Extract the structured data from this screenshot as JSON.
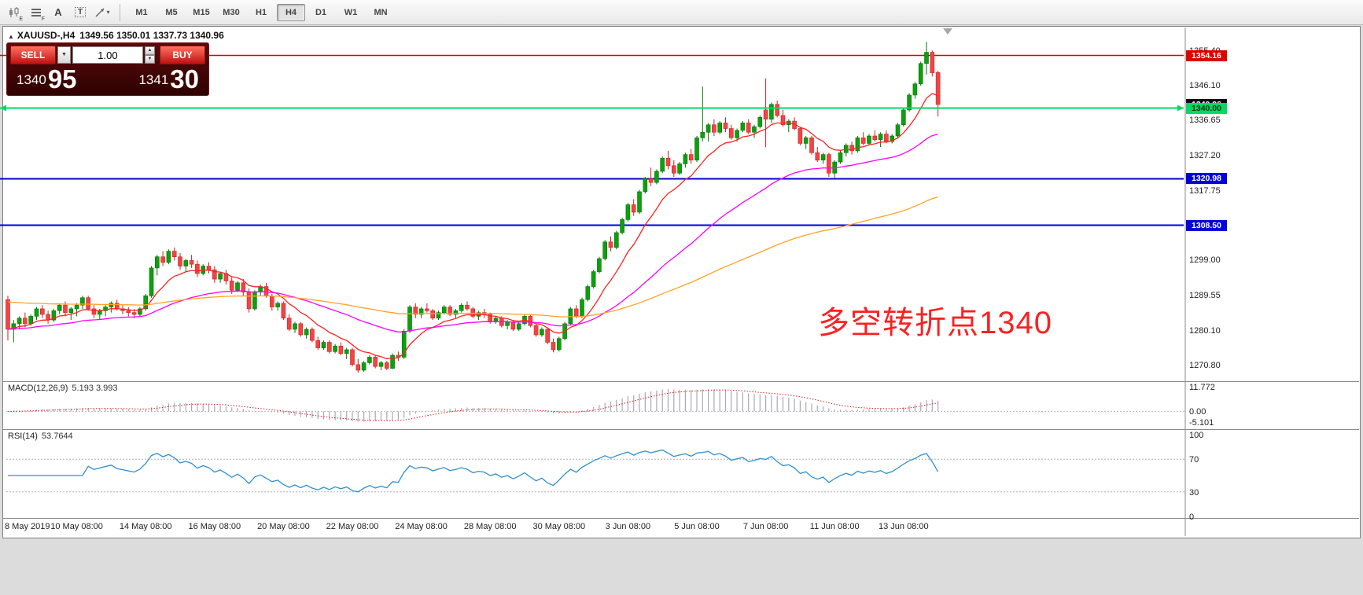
{
  "toolbar": {
    "tool_labels": {
      "e": "E",
      "f": "F",
      "a": "A",
      "t": "T"
    },
    "timeframes": [
      "M1",
      "M5",
      "M15",
      "M30",
      "H1",
      "H4",
      "D1",
      "W1",
      "MN"
    ],
    "active_timeframe": "H4"
  },
  "chart": {
    "symbol_period": "XAUUSD-,H4",
    "ohlc_text": "1349.56 1350.01 1337.73 1340.96",
    "annotation": "多空转折点1340"
  },
  "trade_panel": {
    "sell_label": "SELL",
    "buy_label": "BUY",
    "volume": "1.00",
    "sell_price_main": "1340",
    "sell_price_big": "95",
    "buy_price_main": "1341",
    "buy_price_big": "30"
  },
  "price_axis": {
    "labels": [
      {
        "text": "1355.40",
        "price": 1355.4
      },
      {
        "text": "1346.10",
        "price": 1346.1
      },
      {
        "text": "1336.65",
        "price": 1336.65
      },
      {
        "text": "1327.20",
        "price": 1327.2
      },
      {
        "text": "1317.75",
        "price": 1317.75
      },
      {
        "text": "1299.00",
        "price": 1299.0
      },
      {
        "text": "1289.55",
        "price": 1289.55
      },
      {
        "text": "1280.10",
        "price": 1280.1
      },
      {
        "text": "1270.80",
        "price": 1270.8
      }
    ],
    "tags": [
      {
        "text": "1354.16",
        "price": 1354.16,
        "bg": "#dd0000",
        "fg": "#ffffff"
      },
      {
        "text": "1340.96",
        "price": 1340.96,
        "bg": "#0b0b18",
        "fg": "#ffffff"
      },
      {
        "text": "1340.00",
        "price": 1340.0,
        "bg": "#00d964",
        "fg": "#00320a"
      },
      {
        "text": "1320.98",
        "price": 1320.98,
        "bg": "#0000d9",
        "fg": "#ffffff"
      },
      {
        "text": "1308.50",
        "price": 1308.5,
        "bg": "#0000d9",
        "fg": "#ffffff"
      }
    ]
  },
  "hlines": [
    {
      "price": 1354.16,
      "color": "#dd0000",
      "width": 1.5,
      "arrows": false
    },
    {
      "price": 1340.0,
      "color": "#00d964",
      "width": 2,
      "arrows": true
    },
    {
      "price": 1320.98,
      "color": "#0000d9",
      "width": 2,
      "arrows": false
    },
    {
      "price": 1308.5,
      "color": "#0000d9",
      "width": 2,
      "arrows": false
    }
  ],
  "macd_panel": {
    "label": "MACD(12,26,9)",
    "values": "5.193 3.993",
    "axis": [
      {
        "text": "11.772",
        "v": 11.772
      },
      {
        "text": "0.00",
        "v": 0
      },
      {
        "text": "-5.101",
        "v": -5.101
      }
    ]
  },
  "rsi_panel": {
    "label": "RSI(14)",
    "value": "53.7644",
    "axis": [
      {
        "text": "100",
        "v": 100
      },
      {
        "text": "70",
        "v": 70
      },
      {
        "text": "30",
        "v": 30
      },
      {
        "text": "0",
        "v": 0
      }
    ],
    "levels": [
      70,
      30
    ]
  },
  "time_axis": [
    {
      "label": "8 May 2019",
      "index": 0
    },
    {
      "label": "10 May 08:00",
      "index": 12
    },
    {
      "label": "14 May 08:00",
      "index": 24
    },
    {
      "label": "16 May 08:00",
      "index": 36
    },
    {
      "label": "20 May 08:00",
      "index": 48
    },
    {
      "label": "22 May 08:00",
      "index": 60
    },
    {
      "label": "24 May 08:00",
      "index": 72
    },
    {
      "label": "28 May 08:00",
      "index": 84
    },
    {
      "label": "30 May 08:00",
      "index": 96
    },
    {
      "label": "3 Jun 08:00",
      "index": 108
    },
    {
      "label": "5 Jun 08:00",
      "index": 120
    },
    {
      "label": "7 Jun 08:00",
      "index": 132
    },
    {
      "label": "11 Jun 08:00",
      "index": 144
    },
    {
      "label": "13 Jun 08:00",
      "index": 156
    }
  ],
  "chart_data": {
    "type": "candlestick",
    "symbol": "XAUUSD",
    "period": "H4",
    "ylim": [
      1264,
      1362
    ],
    "overlays": [
      {
        "name": "ma-fast",
        "color": "#ff2222",
        "period": 10
      },
      {
        "name": "ma-mid",
        "color": "#ff00ff",
        "period": 40
      },
      {
        "name": "ma-slow",
        "color": "#ffa224",
        "period": 110,
        "seed": 1288
      }
    ],
    "indicators": {
      "macd": {
        "fast": 12,
        "slow": 26,
        "signal": 9
      },
      "rsi": {
        "period": 14
      }
    },
    "candles": [
      [
        1288.5,
        1289.5,
        1277.5,
        1280.5
      ],
      [
        1280.5,
        1283.0,
        1277.0,
        1282.0
      ],
      [
        1282.0,
        1284.0,
        1280.5,
        1283.5
      ],
      [
        1283.5,
        1285.0,
        1281.0,
        1282.0
      ],
      [
        1282.0,
        1284.5,
        1281.5,
        1284.0
      ],
      [
        1284.0,
        1286.5,
        1283.0,
        1286.0
      ],
      [
        1286.0,
        1287.0,
        1283.5,
        1284.5
      ],
      [
        1284.5,
        1285.5,
        1282.0,
        1283.0
      ],
      [
        1283.0,
        1286.0,
        1282.5,
        1285.5
      ],
      [
        1285.5,
        1287.5,
        1284.5,
        1287.0
      ],
      [
        1287.0,
        1288.0,
        1284.0,
        1285.0
      ],
      [
        1285.0,
        1286.5,
        1283.0,
        1286.0
      ],
      [
        1286.0,
        1287.5,
        1284.0,
        1287.0
      ],
      [
        1287.0,
        1289.5,
        1286.0,
        1289.0
      ],
      [
        1289.0,
        1289.5,
        1285.5,
        1286.0
      ],
      [
        1286.0,
        1287.0,
        1283.5,
        1284.5
      ],
      [
        1284.5,
        1286.0,
        1283.0,
        1285.5
      ],
      [
        1285.5,
        1287.0,
        1284.0,
        1286.5
      ],
      [
        1286.5,
        1288.0,
        1285.0,
        1287.5
      ],
      [
        1287.5,
        1288.5,
        1285.5,
        1286.0
      ],
      [
        1286.0,
        1287.0,
        1284.5,
        1285.5
      ],
      [
        1285.5,
        1286.5,
        1284.0,
        1285.0
      ],
      [
        1285.0,
        1286.0,
        1283.5,
        1284.5
      ],
      [
        1284.5,
        1286.5,
        1284.0,
        1286.0
      ],
      [
        1286.0,
        1290.0,
        1285.5,
        1289.5
      ],
      [
        1289.5,
        1297.5,
        1289.0,
        1297.0
      ],
      [
        1297.0,
        1300.5,
        1295.0,
        1300.0
      ],
      [
        1300.0,
        1301.5,
        1297.5,
        1298.5
      ],
      [
        1298.5,
        1302.0,
        1298.0,
        1301.5
      ],
      [
        1301.5,
        1302.5,
        1299.0,
        1300.0
      ],
      [
        1300.0,
        1301.0,
        1296.5,
        1297.5
      ],
      [
        1297.5,
        1299.5,
        1296.0,
        1299.0
      ],
      [
        1299.0,
        1300.5,
        1297.0,
        1298.0
      ],
      [
        1298.0,
        1299.0,
        1294.5,
        1295.5
      ],
      [
        1295.5,
        1298.0,
        1295.0,
        1297.5
      ],
      [
        1297.5,
        1298.5,
        1295.5,
        1296.5
      ],
      [
        1296.5,
        1297.5,
        1293.0,
        1294.0
      ],
      [
        1294.0,
        1296.0,
        1293.0,
        1295.5
      ],
      [
        1295.5,
        1296.5,
        1292.5,
        1293.5
      ],
      [
        1293.5,
        1294.5,
        1290.0,
        1291.0
      ],
      [
        1291.0,
        1293.5,
        1290.5,
        1293.0
      ],
      [
        1293.0,
        1294.0,
        1289.5,
        1290.5
      ],
      [
        1290.5,
        1291.5,
        1285.0,
        1286.0
      ],
      [
        1286.0,
        1291.0,
        1285.5,
        1290.5
      ],
      [
        1290.5,
        1292.5,
        1289.5,
        1292.0
      ],
      [
        1292.0,
        1293.0,
        1289.0,
        1289.5
      ],
      [
        1289.5,
        1290.0,
        1285.5,
        1286.5
      ],
      [
        1286.5,
        1288.0,
        1285.5,
        1287.5
      ],
      [
        1287.5,
        1288.0,
        1283.0,
        1283.5
      ],
      [
        1283.5,
        1284.5,
        1280.0,
        1280.5
      ],
      [
        1280.5,
        1282.5,
        1279.5,
        1282.0
      ],
      [
        1282.0,
        1282.5,
        1278.5,
        1279.0
      ],
      [
        1279.0,
        1281.0,
        1278.0,
        1280.5
      ],
      [
        1280.5,
        1281.0,
        1277.0,
        1277.5
      ],
      [
        1277.5,
        1278.5,
        1275.0,
        1275.5
      ],
      [
        1275.5,
        1277.5,
        1275.0,
        1277.0
      ],
      [
        1277.0,
        1277.5,
        1274.0,
        1274.5
      ],
      [
        1274.5,
        1276.5,
        1274.0,
        1276.0
      ],
      [
        1276.0,
        1277.0,
        1273.5,
        1274.0
      ],
      [
        1274.0,
        1275.5,
        1272.5,
        1275.0
      ],
      [
        1275.0,
        1275.5,
        1270.5,
        1271.0
      ],
      [
        1271.0,
        1272.5,
        1268.8,
        1269.5
      ],
      [
        1269.5,
        1272.0,
        1269.0,
        1271.5
      ],
      [
        1271.5,
        1273.5,
        1271.0,
        1273.0
      ],
      [
        1273.0,
        1273.5,
        1270.0,
        1270.5
      ],
      [
        1270.5,
        1272.0,
        1269.5,
        1271.5
      ],
      [
        1271.5,
        1272.0,
        1269.5,
        1270.0
      ],
      [
        1270.0,
        1274.0,
        1269.8,
        1273.5
      ],
      [
        1273.5,
        1274.5,
        1272.0,
        1273.0
      ],
      [
        1273.0,
        1280.5,
        1272.5,
        1280.0
      ],
      [
        1280.0,
        1287.0,
        1279.5,
        1286.5
      ],
      [
        1286.5,
        1287.5,
        1283.5,
        1284.5
      ],
      [
        1284.5,
        1286.5,
        1283.5,
        1286.0
      ],
      [
        1286.0,
        1287.5,
        1285.0,
        1285.5
      ],
      [
        1285.5,
        1286.0,
        1283.0,
        1283.5
      ],
      [
        1283.5,
        1285.5,
        1283.0,
        1285.0
      ],
      [
        1285.0,
        1287.0,
        1284.5,
        1286.5
      ],
      [
        1286.5,
        1287.0,
        1284.0,
        1284.5
      ],
      [
        1284.5,
        1286.0,
        1283.5,
        1285.5
      ],
      [
        1285.5,
        1287.5,
        1285.0,
        1287.0
      ],
      [
        1287.0,
        1288.0,
        1285.5,
        1286.0
      ],
      [
        1286.0,
        1286.5,
        1283.5,
        1284.0
      ],
      [
        1284.0,
        1285.5,
        1283.0,
        1285.0
      ],
      [
        1285.0,
        1286.0,
        1283.5,
        1284.5
      ],
      [
        1284.5,
        1285.0,
        1282.0,
        1282.5
      ],
      [
        1282.5,
        1284.0,
        1282.0,
        1283.5
      ],
      [
        1283.5,
        1284.0,
        1281.0,
        1281.5
      ],
      [
        1281.5,
        1283.0,
        1280.5,
        1282.5
      ],
      [
        1282.5,
        1283.0,
        1280.0,
        1280.5
      ],
      [
        1280.5,
        1282.5,
        1280.0,
        1282.0
      ],
      [
        1282.0,
        1284.5,
        1281.5,
        1284.0
      ],
      [
        1284.0,
        1284.5,
        1281.0,
        1281.5
      ],
      [
        1281.5,
        1282.0,
        1278.5,
        1279.0
      ],
      [
        1279.0,
        1281.0,
        1278.5,
        1280.5
      ],
      [
        1280.5,
        1281.0,
        1276.5,
        1277.0
      ],
      [
        1277.0,
        1278.0,
        1274.3,
        1275.0
      ],
      [
        1275.0,
        1278.5,
        1274.5,
        1278.0
      ],
      [
        1278.0,
        1282.5,
        1277.5,
        1282.0
      ],
      [
        1282.0,
        1286.5,
        1281.5,
        1286.0
      ],
      [
        1286.0,
        1287.0,
        1283.5,
        1284.0
      ],
      [
        1284.0,
        1289.0,
        1283.5,
        1288.5
      ],
      [
        1288.5,
        1292.5,
        1288.0,
        1292.0
      ],
      [
        1292.0,
        1296.5,
        1291.5,
        1296.0
      ],
      [
        1296.0,
        1300.0,
        1295.5,
        1299.5
      ],
      [
        1299.5,
        1304.5,
        1299.0,
        1304.0
      ],
      [
        1304.0,
        1305.5,
        1301.5,
        1302.5
      ],
      [
        1302.5,
        1307.0,
        1302.0,
        1306.5
      ],
      [
        1306.5,
        1310.5,
        1306.0,
        1310.0
      ],
      [
        1310.0,
        1314.5,
        1309.5,
        1314.0
      ],
      [
        1314.0,
        1315.5,
        1311.0,
        1312.0
      ],
      [
        1312.0,
        1318.0,
        1311.5,
        1317.5
      ],
      [
        1317.5,
        1321.5,
        1317.0,
        1321.0
      ],
      [
        1321.0,
        1324.0,
        1319.0,
        1320.0
      ],
      [
        1320.0,
        1323.5,
        1319.5,
        1323.0
      ],
      [
        1323.0,
        1327.0,
        1322.5,
        1326.5
      ],
      [
        1326.5,
        1328.5,
        1323.5,
        1324.5
      ],
      [
        1324.5,
        1326.0,
        1321.5,
        1322.5
      ],
      [
        1322.5,
        1325.5,
        1322.0,
        1325.0
      ],
      [
        1325.0,
        1328.0,
        1324.0,
        1327.5
      ],
      [
        1327.5,
        1329.0,
        1325.0,
        1326.0
      ],
      [
        1326.0,
        1332.5,
        1325.5,
        1332.0
      ],
      [
        1332.0,
        1345.8,
        1331.0,
        1333.5
      ],
      [
        1333.5,
        1336.0,
        1331.0,
        1335.5
      ],
      [
        1335.5,
        1337.0,
        1332.5,
        1333.5
      ],
      [
        1333.5,
        1336.5,
        1333.0,
        1336.0
      ],
      [
        1336.0,
        1337.5,
        1333.5,
        1334.5
      ],
      [
        1334.5,
        1335.5,
        1331.5,
        1332.0
      ],
      [
        1332.0,
        1334.5,
        1331.0,
        1334.0
      ],
      [
        1334.0,
        1336.5,
        1333.5,
        1336.0
      ],
      [
        1336.0,
        1337.0,
        1333.0,
        1333.5
      ],
      [
        1333.5,
        1335.5,
        1332.0,
        1335.0
      ],
      [
        1335.0,
        1338.0,
        1334.5,
        1337.5
      ],
      [
        1339.5,
        1348.0,
        1329.5,
        1337.0
      ],
      [
        1337.0,
        1341.5,
        1336.0,
        1341.0
      ],
      [
        1341.0,
        1342.0,
        1337.5,
        1338.0
      ],
      [
        1338.0,
        1339.5,
        1335.0,
        1335.5
      ],
      [
        1335.5,
        1337.0,
        1333.5,
        1336.5
      ],
      [
        1336.5,
        1337.5,
        1334.0,
        1334.5
      ],
      [
        1334.5,
        1335.0,
        1330.0,
        1330.5
      ],
      [
        1330.5,
        1332.5,
        1329.0,
        1332.0
      ],
      [
        1332.0,
        1332.5,
        1327.5,
        1328.0
      ],
      [
        1328.0,
        1329.5,
        1325.5,
        1326.0
      ],
      [
        1326.0,
        1328.0,
        1325.0,
        1327.5
      ],
      [
        1327.5,
        1328.0,
        1321.5,
        1322.5
      ],
      [
        1322.5,
        1326.0,
        1321.0,
        1325.5
      ],
      [
        1325.5,
        1328.5,
        1325.0,
        1328.0
      ],
      [
        1328.0,
        1330.5,
        1327.0,
        1330.0
      ],
      [
        1330.0,
        1331.0,
        1327.5,
        1328.5
      ],
      [
        1328.5,
        1332.5,
        1328.0,
        1332.0
      ],
      [
        1332.0,
        1333.5,
        1330.0,
        1330.5
      ],
      [
        1330.5,
        1333.0,
        1330.0,
        1332.5
      ],
      [
        1332.5,
        1334.0,
        1331.0,
        1331.5
      ],
      [
        1331.5,
        1333.5,
        1329.5,
        1333.0
      ],
      [
        1333.0,
        1334.0,
        1330.5,
        1331.0
      ],
      [
        1331.0,
        1333.0,
        1330.5,
        1332.5
      ],
      [
        1332.5,
        1336.0,
        1332.0,
        1335.5
      ],
      [
        1335.5,
        1340.0,
        1335.0,
        1339.5
      ],
      [
        1339.5,
        1344.0,
        1339.0,
        1343.5
      ],
      [
        1343.5,
        1347.0,
        1342.5,
        1346.5
      ],
      [
        1346.5,
        1352.5,
        1346.0,
        1352.0
      ],
      [
        1352.0,
        1357.8,
        1349.0,
        1355.0
      ],
      [
        1355.0,
        1355.5,
        1348.5,
        1349.5
      ],
      [
        1349.56,
        1350.01,
        1337.73,
        1340.96
      ]
    ]
  }
}
